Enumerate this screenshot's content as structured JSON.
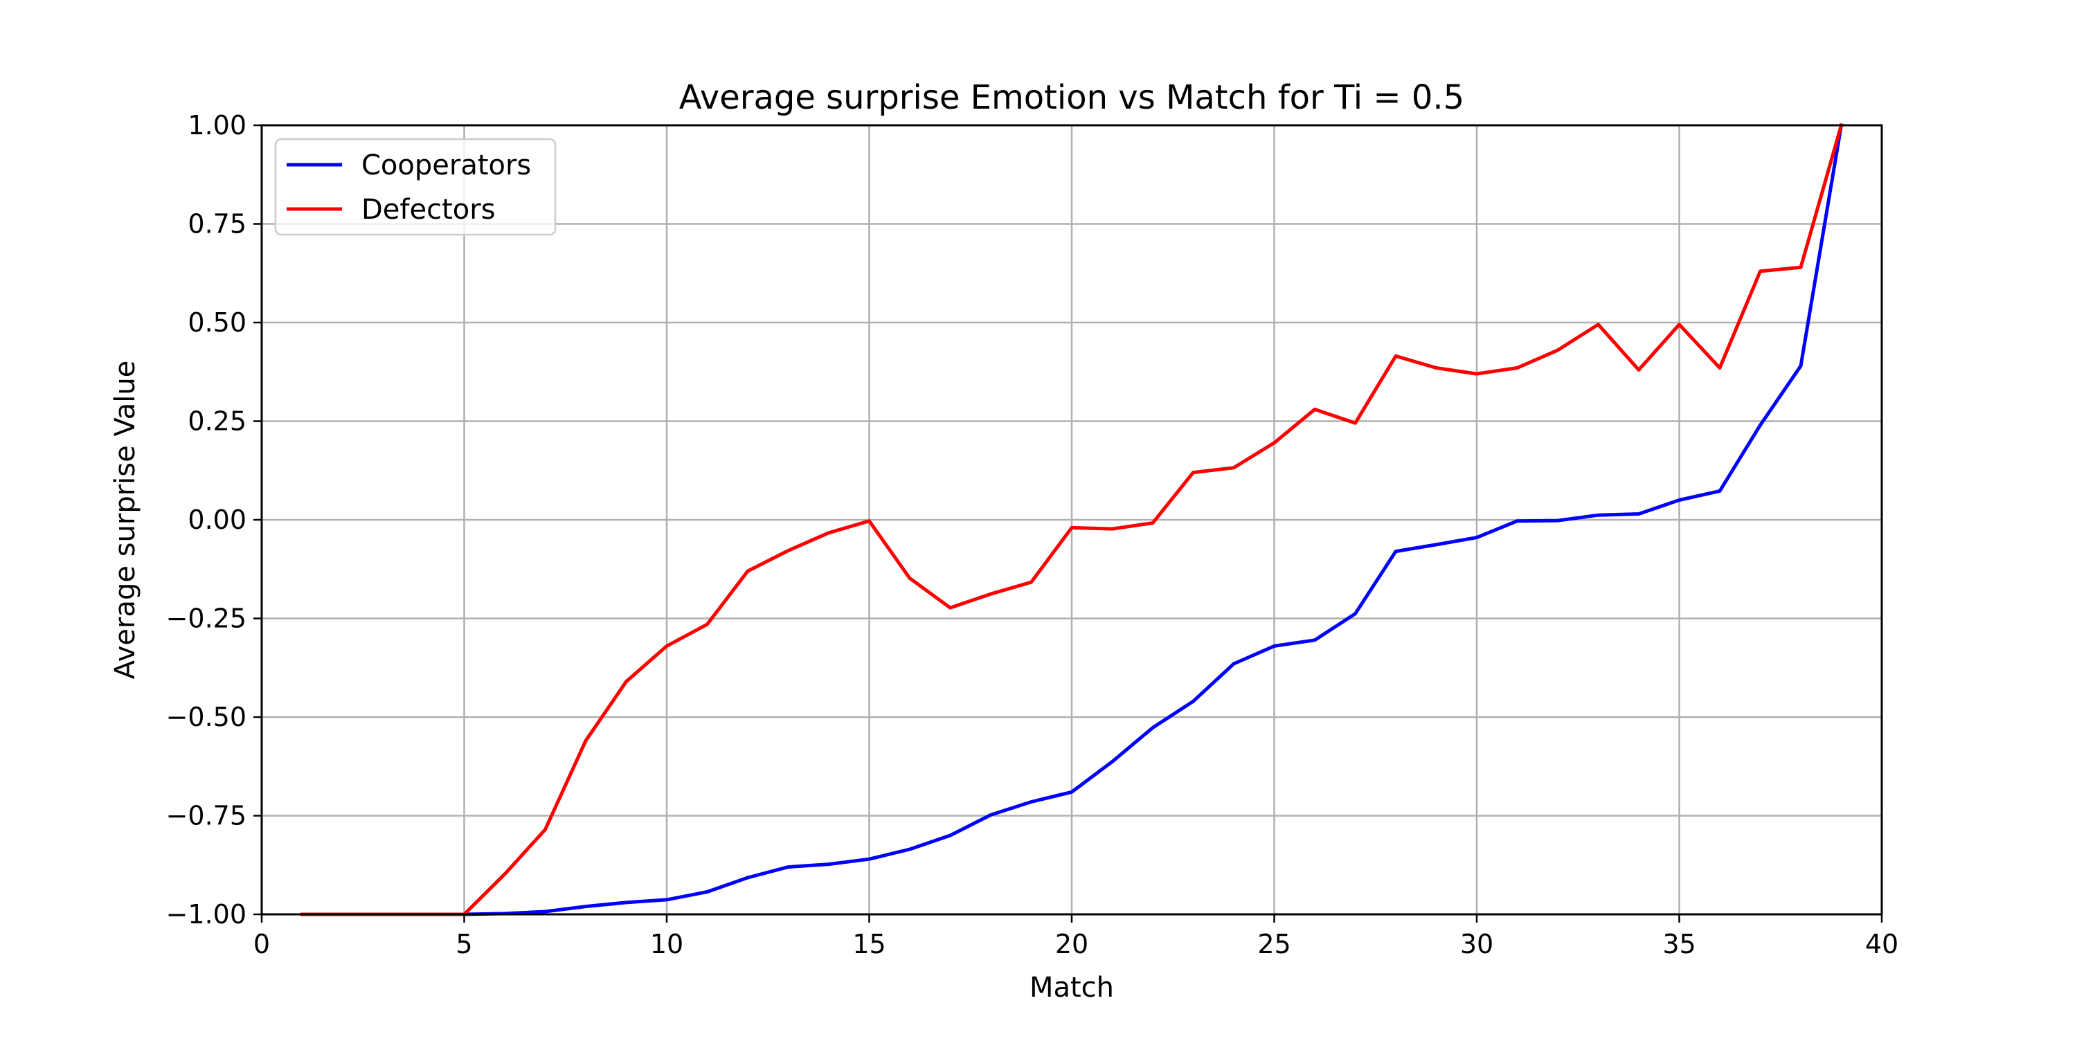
{
  "chart_data": {
    "type": "line",
    "title": "Average surprise Emotion vs Match for Ti = 0.5",
    "xlabel": "Match",
    "ylabel": "Average surprise Value",
    "xlim": [
      0,
      40
    ],
    "ylim": [
      -1.0,
      1.0
    ],
    "xticks": [
      "0",
      "5",
      "10",
      "15",
      "20",
      "25",
      "30",
      "35",
      "40"
    ],
    "yticks": [
      "1.00",
      "0.75",
      "0.50",
      "0.25",
      "0.00",
      "−0.25",
      "−0.50",
      "−0.75",
      "−1.00"
    ],
    "grid": true,
    "legend_position": "top-left",
    "x": [
      1,
      2,
      3,
      4,
      5,
      6,
      7,
      8,
      9,
      10,
      11,
      12,
      13,
      14,
      15,
      16,
      17,
      18,
      19,
      20,
      21,
      22,
      23,
      24,
      25,
      26,
      27,
      28,
      29,
      30,
      31,
      32,
      33,
      34,
      35,
      36,
      37,
      38,
      39
    ],
    "series": [
      {
        "name": "Cooperators",
        "color": "#0000ff",
        "values": [
          -1.0,
          -1.0,
          -1.0,
          -1.0,
          -1.0,
          -0.998,
          -0.993,
          -0.98,
          -0.97,
          -0.963,
          -0.943,
          -0.907,
          -0.88,
          -0.873,
          -0.86,
          -0.835,
          -0.8,
          -0.748,
          -0.715,
          -0.69,
          -0.613,
          -0.527,
          -0.46,
          -0.365,
          -0.32,
          -0.305,
          -0.238,
          -0.08,
          -0.063,
          -0.045,
          -0.003,
          -0.002,
          0.012,
          0.015,
          0.05,
          0.073,
          0.24,
          0.39,
          1.0
        ]
      },
      {
        "name": "Defectors",
        "color": "#ff0000",
        "values": [
          -1.0,
          -1.0,
          -1.0,
          -1.0,
          -1.0,
          -0.898,
          -0.785,
          -0.56,
          -0.41,
          -0.32,
          -0.265,
          -0.13,
          -0.078,
          -0.033,
          -0.003,
          -0.148,
          -0.223,
          -0.188,
          -0.158,
          -0.02,
          -0.023,
          -0.008,
          0.12,
          0.132,
          0.195,
          0.28,
          0.245,
          0.415,
          0.385,
          0.37,
          0.385,
          0.43,
          0.495,
          0.38,
          0.495,
          0.385,
          0.63,
          0.64,
          1.0
        ]
      }
    ]
  }
}
